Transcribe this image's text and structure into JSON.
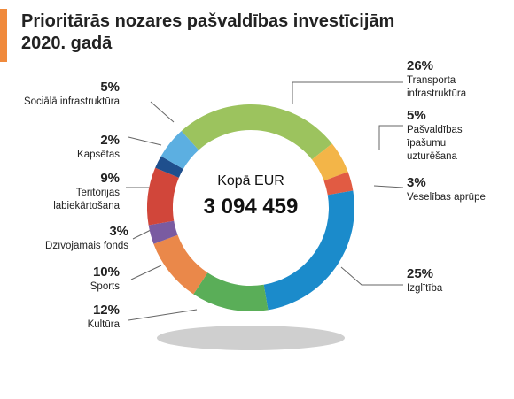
{
  "chart_data": {
    "type": "donut",
    "title": "Prioritārās nozares pašvaldības investīcijām 2020. gadā",
    "center_label": "Kopā EUR",
    "total": "3 094 459",
    "categories": [
      "Transporta infrastruktūra",
      "Pašvaldības īpašumu uzturēšana",
      "Veselības aprūpe",
      "Izglītība",
      "Kultūra",
      "Sports",
      "Dzīvojamais fonds",
      "Teritorijas labiekārtošana",
      "Kapsētas",
      "Sociālā infrastruktūra"
    ],
    "values": [
      26,
      5,
      3,
      25,
      12,
      10,
      3,
      9,
      2,
      5
    ],
    "value_labels": [
      "26%",
      "5%",
      "3%",
      "25%",
      "12%",
      "10%",
      "3%",
      "9%",
      "2%",
      "5%"
    ],
    "colors": [
      "#9cc35e",
      "#f3b548",
      "#e15b43",
      "#1b8bcb",
      "#5aae58",
      "#ea884a",
      "#7a5ba1",
      "#d1463a",
      "#1f4f8d",
      "#5cafe1"
    ]
  }
}
